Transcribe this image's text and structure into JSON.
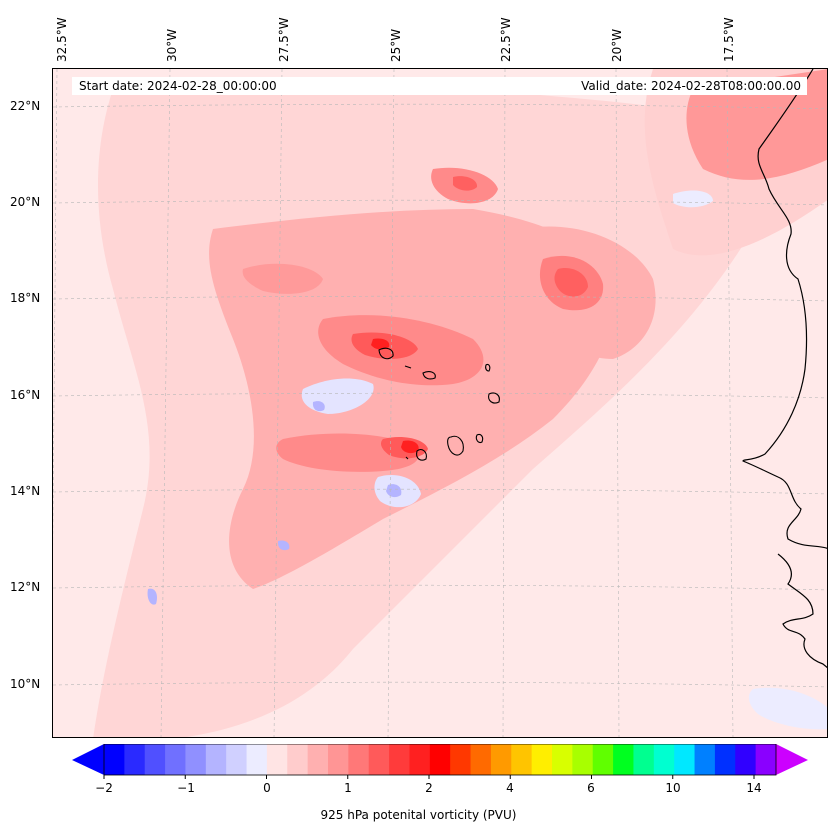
{
  "map": {
    "info": {
      "start_date": "Start date: 2024-02-28_00:00:00",
      "valid_date": "Valid_date: 2024-02-28T08:00:00.00"
    },
    "longitude_labels": [
      "32.5°W",
      "30°W",
      "27.5°W",
      "25°W",
      "22.5°W",
      "20°W",
      "17.5°W"
    ],
    "latitude_labels": [
      "22°N",
      "20°N",
      "18°N",
      "16°N",
      "14°N",
      "12°N",
      "10°N"
    ],
    "colors": {
      "background": "#ffe9e9",
      "light_pink": "#ffcfcf",
      "pink": "#ffb0b0",
      "red_mid": "#ff8080",
      "red_strong": "#ff5a5a",
      "red_peak": "#ff2020",
      "blue_light": "#e6e6ff",
      "blue_mid": "#b4b4ff",
      "coast": "#000000"
    }
  },
  "colorbar": {
    "title": "925 hPa potenital vorticity (PVU)",
    "tick_labels": [
      "−2",
      "−1",
      "0",
      "1",
      "2",
      "4",
      "6",
      "10",
      "14"
    ],
    "colors": [
      "#0000ff",
      "#2a2aff",
      "#5050ff",
      "#7070ff",
      "#9090ff",
      "#b4b4ff",
      "#d0d0ff",
      "#ececff",
      "#ffe4e4",
      "#ffcccc",
      "#ffb0b0",
      "#ff9595",
      "#ff7878",
      "#ff5a5a",
      "#ff3b3b",
      "#ff2020",
      "#ff0000",
      "#ff3800",
      "#ff6a00",
      "#ff9a00",
      "#ffc400",
      "#ffee00",
      "#d8ff00",
      "#a8ff00",
      "#60ff00",
      "#00ff20",
      "#00ff90",
      "#00ffd0",
      "#00e8ff",
      "#0080ff",
      "#0030ff",
      "#3000ff",
      "#8a00ff"
    ],
    "extend_low": "#0000ff",
    "extend_high": "#cc00ff"
  }
}
